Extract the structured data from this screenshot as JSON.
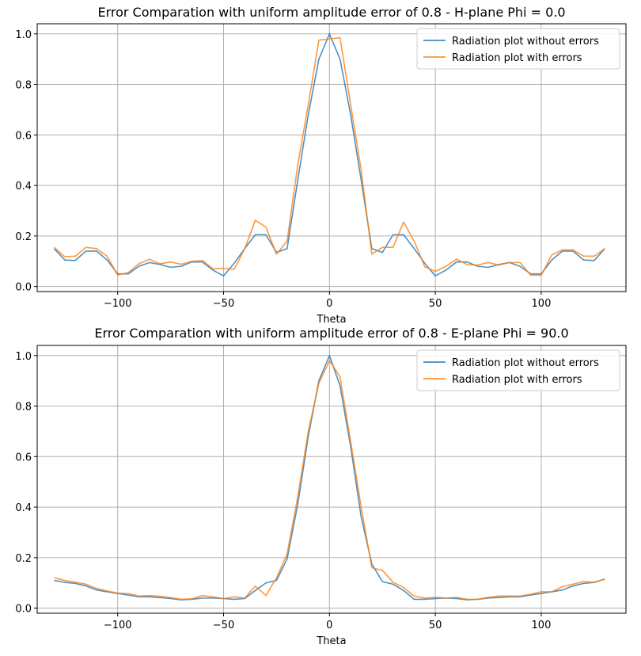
{
  "colors": {
    "without": "#1f77b4",
    "with": "#ff7f0e",
    "grid": "#b0b0b0"
  },
  "chart_data": [
    {
      "type": "line",
      "title": "Error Comparation with uniform amplitude error of 0.8 - H-plane Phi = 0.0",
      "xlabel": "Theta",
      "ylabel": "",
      "xlim": [
        -138,
        140
      ],
      "ylim": [
        -0.02,
        1.04
      ],
      "xticks": [
        -100,
        -50,
        0,
        50,
        100
      ],
      "xtick_labels": [
        "−100",
        "−50",
        "0",
        "50",
        "100"
      ],
      "yticks": [
        0.0,
        0.2,
        0.4,
        0.6,
        0.8,
        1.0
      ],
      "ytick_labels": [
        "0.0",
        "0.2",
        "0.4",
        "0.6",
        "0.8",
        "1.0"
      ],
      "grid": true,
      "legend": "top-right",
      "x": [
        -130,
        -125,
        -120,
        -115,
        -110,
        -105,
        -100,
        -95,
        -90,
        -85,
        -80,
        -75,
        -70,
        -65,
        -60,
        -55,
        -50,
        -45,
        -40,
        -35,
        -30,
        -25,
        -20,
        -15,
        -10,
        -5,
        0,
        5,
        10,
        15,
        20,
        25,
        30,
        35,
        40,
        45,
        50,
        55,
        60,
        65,
        70,
        75,
        80,
        85,
        90,
        95,
        100,
        105,
        110,
        115,
        120,
        125,
        130
      ],
      "series": [
        {
          "name": "Radiation plot without errors",
          "color": "#1f77b4",
          "values": [
            0.15,
            0.105,
            0.103,
            0.14,
            0.14,
            0.105,
            0.05,
            0.05,
            0.08,
            0.095,
            0.087,
            0.076,
            0.08,
            0.097,
            0.097,
            0.065,
            0.042,
            0.092,
            0.15,
            0.205,
            0.205,
            0.135,
            0.15,
            0.42,
            0.68,
            0.9,
            1.0,
            0.9,
            0.68,
            0.42,
            0.15,
            0.135,
            0.205,
            0.205,
            0.15,
            0.092,
            0.042,
            0.065,
            0.097,
            0.097,
            0.08,
            0.076,
            0.087,
            0.095,
            0.08,
            0.05,
            0.05,
            0.105,
            0.14,
            0.14,
            0.105,
            0.103,
            0.15
          ]
        },
        {
          "name": "Radiation plot with errors",
          "color": "#ff7f0e",
          "values": [
            0.155,
            0.118,
            0.12,
            0.155,
            0.15,
            0.12,
            0.045,
            0.055,
            0.09,
            0.108,
            0.09,
            0.097,
            0.088,
            0.1,
            0.103,
            0.07,
            0.072,
            0.068,
            0.15,
            0.262,
            0.235,
            0.128,
            0.18,
            0.48,
            0.72,
            0.975,
            0.98,
            0.985,
            0.72,
            0.46,
            0.128,
            0.155,
            0.155,
            0.255,
            0.18,
            0.078,
            0.06,
            0.08,
            0.108,
            0.087,
            0.085,
            0.095,
            0.085,
            0.095,
            0.095,
            0.045,
            0.045,
            0.125,
            0.145,
            0.145,
            0.12,
            0.12,
            0.15
          ]
        }
      ]
    },
    {
      "type": "line",
      "title": "Error Comparation with uniform amplitude error of 0.8 - E-plane Phi = 90.0",
      "xlabel": "Theta",
      "ylabel": "",
      "xlim": [
        -138,
        140
      ],
      "ylim": [
        -0.02,
        1.04
      ],
      "xticks": [
        -100,
        -50,
        0,
        50,
        100
      ],
      "xtick_labels": [
        "−100",
        "−50",
        "0",
        "50",
        "100"
      ],
      "yticks": [
        0.0,
        0.2,
        0.4,
        0.6,
        0.8,
        1.0
      ],
      "ytick_labels": [
        "0.0",
        "0.2",
        "0.4",
        "0.6",
        "0.8",
        "1.0"
      ],
      "grid": true,
      "legend": "top-right",
      "x": [
        -130,
        -125,
        -120,
        -115,
        -110,
        -105,
        -100,
        -95,
        -90,
        -85,
        -80,
        -75,
        -70,
        -65,
        -60,
        -55,
        -50,
        -45,
        -40,
        -35,
        -30,
        -25,
        -20,
        -15,
        -10,
        -5,
        0,
        5,
        10,
        15,
        20,
        25,
        30,
        35,
        40,
        45,
        50,
        55,
        60,
        65,
        70,
        75,
        80,
        85,
        90,
        95,
        100,
        105,
        110,
        115,
        120,
        125,
        130
      ],
      "series": [
        {
          "name": "Radiation plot without errors",
          "color": "#1f77b4",
          "values": [
            0.11,
            0.102,
            0.098,
            0.088,
            0.072,
            0.065,
            0.058,
            0.052,
            0.045,
            0.045,
            0.042,
            0.038,
            0.033,
            0.035,
            0.04,
            0.04,
            0.038,
            0.035,
            0.038,
            0.07,
            0.1,
            0.11,
            0.195,
            0.41,
            0.68,
            0.9,
            1.0,
            0.88,
            0.64,
            0.36,
            0.175,
            0.105,
            0.095,
            0.07,
            0.035,
            0.035,
            0.038,
            0.04,
            0.038,
            0.033,
            0.035,
            0.04,
            0.042,
            0.045,
            0.045,
            0.052,
            0.058,
            0.065,
            0.072,
            0.088,
            0.098,
            0.102,
            0.115
          ]
        },
        {
          "name": "Radiation plot with errors",
          "color": "#ff7f0e",
          "values": [
            0.12,
            0.11,
            0.103,
            0.095,
            0.078,
            0.068,
            0.06,
            0.058,
            0.048,
            0.05,
            0.047,
            0.042,
            0.035,
            0.037,
            0.05,
            0.045,
            0.038,
            0.045,
            0.04,
            0.088,
            0.05,
            0.12,
            0.215,
            0.44,
            0.7,
            0.89,
            0.98,
            0.915,
            0.66,
            0.4,
            0.16,
            0.15,
            0.103,
            0.082,
            0.048,
            0.04,
            0.043,
            0.04,
            0.043,
            0.035,
            0.035,
            0.043,
            0.048,
            0.048,
            0.048,
            0.055,
            0.065,
            0.065,
            0.085,
            0.095,
            0.105,
            0.103,
            0.115
          ]
        }
      ]
    }
  ]
}
